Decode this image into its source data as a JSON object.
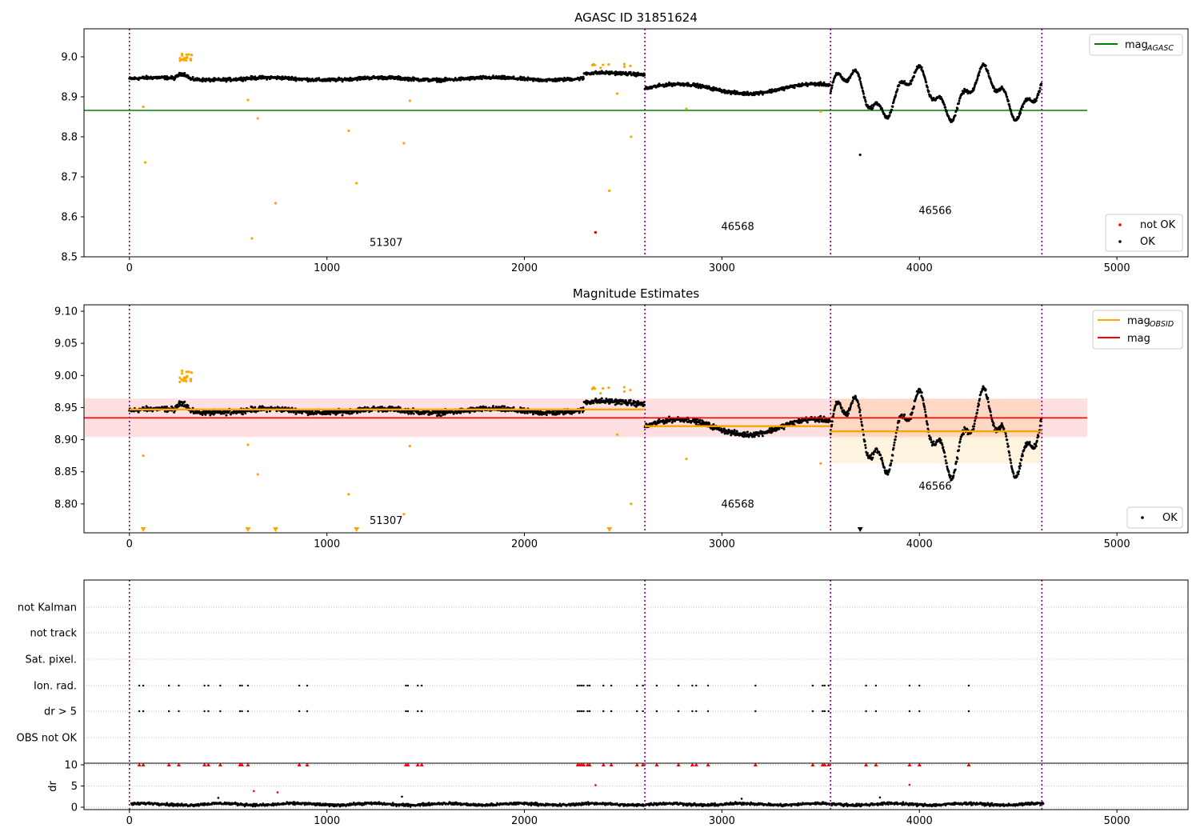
{
  "chart_data": [
    {
      "type": "scatter",
      "title": "AGASC ID 31851624",
      "xlim": [
        -230,
        5360
      ],
      "ylim": [
        8.5,
        9.07
      ],
      "xticks": [
        0,
        1000,
        2000,
        3000,
        4000,
        5000
      ],
      "yticks": [
        8.5,
        8.6,
        8.7,
        8.8,
        8.9,
        9.0
      ],
      "xlabel": "",
      "ylabel": "",
      "grid": false,
      "legend_top": {
        "placement": "top-right",
        "entries": [
          {
            "label": "mag",
            "sub": "AGASC",
            "color": "#008000"
          }
        ]
      },
      "legend_bottom": {
        "placement": "bottom-right",
        "entries": [
          {
            "label": "not OK",
            "color": "#ff0000"
          },
          {
            "label": "OK",
            "color": "#000000"
          }
        ]
      },
      "mag_agasc": {
        "value": 8.866,
        "x": [
          -230,
          4850
        ]
      },
      "obs_boundaries": [
        0,
        2610,
        3550,
        4620
      ],
      "obs_labels": [
        {
          "text": "51307",
          "x": 1300,
          "y": 8.527
        },
        {
          "text": "46568",
          "x": 3080,
          "y": 8.567
        },
        {
          "text": "46566",
          "x": 4080,
          "y": 8.607
        }
      ],
      "segments": [
        {
          "x0": 0,
          "x1": 2610,
          "base": 8.945,
          "amp": 0.004,
          "slope": 0.0,
          "noise": 0.006
        },
        {
          "x0": 2610,
          "x1": 3550,
          "base": 8.92,
          "amp": 0.012,
          "slope": 0.0,
          "noise": 0.006
        },
        {
          "x0": 3550,
          "x1": 4620,
          "base": 8.91,
          "amp": 0.05,
          "slope": 0.0,
          "noise": 0.006
        }
      ],
      "orange_outliers": [
        [
          70,
          8.875
        ],
        [
          80,
          8.736
        ],
        [
          600,
          8.892
        ],
        [
          620,
          8.546
        ],
        [
          650,
          8.846
        ],
        [
          740,
          8.634
        ],
        [
          1110,
          8.815
        ],
        [
          1150,
          8.684
        ],
        [
          1390,
          8.784
        ],
        [
          1420,
          8.89
        ],
        [
          2430,
          8.665
        ],
        [
          2470,
          8.908
        ],
        [
          2540,
          8.8
        ],
        [
          2820,
          8.87
        ],
        [
          3500,
          8.863
        ]
      ],
      "red_outliers": [
        [
          2360,
          8.561
        ]
      ]
    },
    {
      "type": "scatter",
      "title": "Magnitude Estimates",
      "xlim": [
        -230,
        5360
      ],
      "ylim": [
        8.755,
        9.11
      ],
      "xticks": [
        0,
        1000,
        2000,
        3000,
        4000,
        5000
      ],
      "yticks": [
        8.8,
        8.85,
        8.9,
        8.95,
        9.0,
        9.05,
        9.1
      ],
      "xlabel": "",
      "ylabel": "",
      "grid": false,
      "legend_top": {
        "placement": "top-right",
        "entries": [
          {
            "label": "mag",
            "sub": "OBSID",
            "color": "#ffa500"
          },
          {
            "label": "mag",
            "sub": "",
            "color": "#ff0000"
          }
        ]
      },
      "legend_bottom": {
        "placement": "bottom-right",
        "entries": [
          {
            "label": "OK",
            "color": "#000000"
          }
        ]
      },
      "mag_mean": {
        "value": 8.934,
        "band": [
          8.904,
          8.964
        ],
        "x": [
          -230,
          4850
        ]
      },
      "mag_obsid": [
        {
          "x0": 0,
          "x1": 2610,
          "value": 8.947
        },
        {
          "x0": 2610,
          "x1": 3550,
          "value": 8.921
        },
        {
          "x0": 3550,
          "x1": 4620,
          "value": 8.913,
          "band": [
            8.863,
            8.963
          ]
        }
      ],
      "obs_boundaries": [
        0,
        2610,
        3550,
        4620
      ],
      "obs_labels": [
        {
          "text": "51307",
          "x": 1300,
          "y": 8.769
        },
        {
          "text": "46568",
          "x": 3080,
          "y": 8.794
        },
        {
          "text": "46566",
          "x": 4080,
          "y": 8.822
        }
      ],
      "lower_limit_markers": [
        70,
        600,
        740,
        1150,
        2430,
        3700
      ]
    },
    {
      "type": "scatter",
      "title": "",
      "xlim": [
        -230,
        5360
      ],
      "xticks": [
        0,
        1000,
        2000,
        3000,
        4000,
        5000
      ],
      "flag_rows": [
        "not Kalman",
        "not track",
        "Sat. pixel.",
        "Ion. rad.",
        "dr > 5",
        "OBS not OK"
      ],
      "flag_events_ion_rad": [
        50,
        70,
        200,
        250,
        380,
        400,
        460,
        560,
        570,
        600,
        860,
        900,
        1400,
        1410,
        1460,
        1480,
        2270,
        2280,
        2290,
        2300,
        2320,
        2330,
        2400,
        2440,
        2570,
        2600,
        2670,
        2780,
        2850,
        2870,
        2930,
        3170,
        3460,
        3510,
        3520,
        3540,
        3730,
        3780,
        3950,
        4000,
        4250
      ],
      "flag_events_dr5": [
        50,
        70,
        200,
        250,
        380,
        400,
        460,
        560,
        570,
        600,
        860,
        900,
        1400,
        1410,
        1460,
        1480,
        2270,
        2280,
        2290,
        2300,
        2320,
        2330,
        2400,
        2440,
        2570,
        2600,
        2670,
        2780,
        2850,
        2870,
        2930,
        3170,
        3460,
        3510,
        3520,
        3540,
        3730,
        3780,
        3950,
        4000,
        4250
      ],
      "dr_ylabel": "dr",
      "dr_ylim": [
        0,
        10
      ],
      "dr_yticks": [
        0,
        5,
        10
      ],
      "dr_outliers": [
        [
          630,
          3.8
        ],
        [
          750,
          3.5
        ],
        [
          2360,
          5.2
        ],
        [
          3950,
          5.3
        ],
        [
          450,
          2.2
        ],
        [
          1380,
          2.5
        ],
        [
          3100,
          2.0
        ],
        [
          3800,
          2.3
        ]
      ],
      "obs_boundaries": [
        0,
        2610,
        3550,
        4620
      ]
    }
  ]
}
